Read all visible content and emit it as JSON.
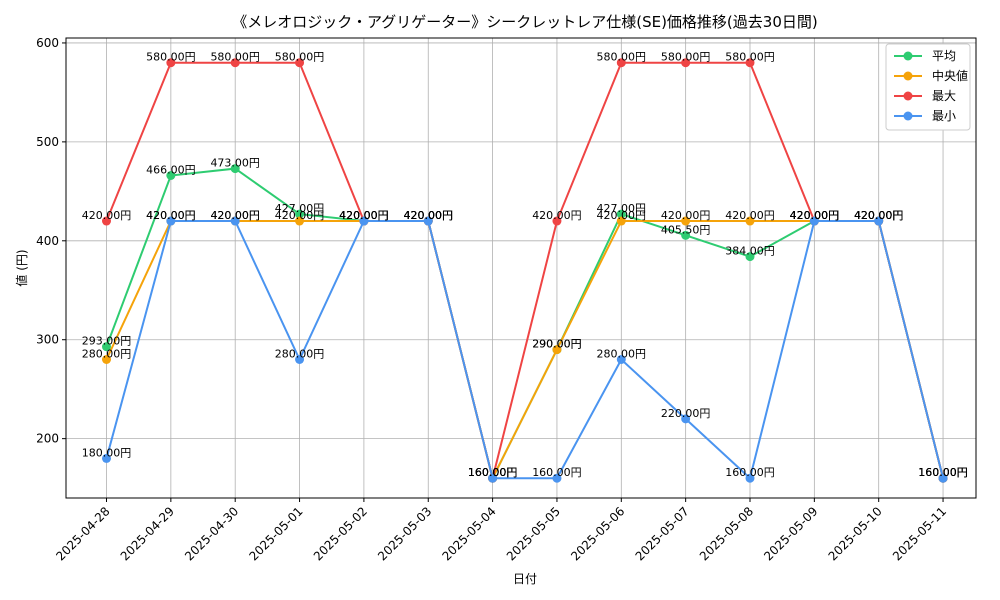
{
  "chart_data": {
    "type": "line",
    "title": "《メレオロジック・アグリゲーター》シークレットレア仕様(SE)価格推移(過去30日間)",
    "xlabel": "日付",
    "ylabel": "値 (円)",
    "ylim": [
      140,
      605
    ],
    "yticks": [
      200,
      300,
      400,
      500,
      600
    ],
    "grid": true,
    "legend_position": "top-right",
    "categories": [
      "2025-04-28",
      "2025-04-29",
      "2025-04-30",
      "2025-05-01",
      "2025-05-02",
      "2025-05-03",
      "2025-05-04",
      "2025-05-05",
      "2025-05-06",
      "2025-05-07",
      "2025-05-08",
      "2025-05-09",
      "2025-05-10",
      "2025-05-11"
    ],
    "series": [
      {
        "name": "平均",
        "color": "#2ecc71",
        "values": [
          293,
          466,
          473,
          427,
          420,
          420,
          160,
          290,
          427,
          405.5,
          384,
          420,
          420,
          160
        ],
        "labels": [
          "293.00円",
          "466.00円",
          "473.00円",
          "427.00円",
          "420.00円",
          "420.00円",
          "160.00円",
          "290.00円",
          "427.00円",
          "405.50円",
          "384.00円",
          "420.00円",
          "420.00円",
          "160.00円"
        ]
      },
      {
        "name": "中央値",
        "color": "#f5a30a",
        "values": [
          280,
          420,
          420,
          420,
          420,
          420,
          160,
          290,
          420,
          420,
          420,
          420,
          420,
          160
        ],
        "labels": [
          "280.00円",
          "420.00円",
          "420.00円",
          "420.00円",
          "420.00円",
          "420.00円",
          "160.00円",
          "290.00円",
          "420.00円",
          "420.00円",
          "420.00円",
          "420.00円",
          "420.00円",
          "160.00円"
        ]
      },
      {
        "name": "最大",
        "color": "#ef4444",
        "values": [
          420,
          580,
          580,
          580,
          420,
          420,
          160,
          420,
          580,
          580,
          580,
          420,
          420,
          160
        ],
        "labels": [
          "420.00円",
          "580.00円",
          "580.00円",
          "580.00円",
          "420.00円",
          "420.00円",
          "160.00円",
          "420.00円",
          "580.00円",
          "580.00円",
          "580.00円",
          "420.00円",
          "420.00円",
          "160.00円"
        ]
      },
      {
        "name": "最小",
        "color": "#4a94f0",
        "values": [
          180,
          420,
          420,
          280,
          420,
          420,
          160,
          160,
          280,
          220,
          160,
          420,
          420,
          160
        ],
        "labels": [
          "180.00円",
          "420.00円",
          "420.00円",
          "280.00円",
          "420.00円",
          "420.00円",
          "160.00円",
          "160.00円",
          "280.00円",
          "220.00円",
          "160.00円",
          "420.00円",
          "420.00円",
          "160.00円"
        ]
      }
    ]
  }
}
